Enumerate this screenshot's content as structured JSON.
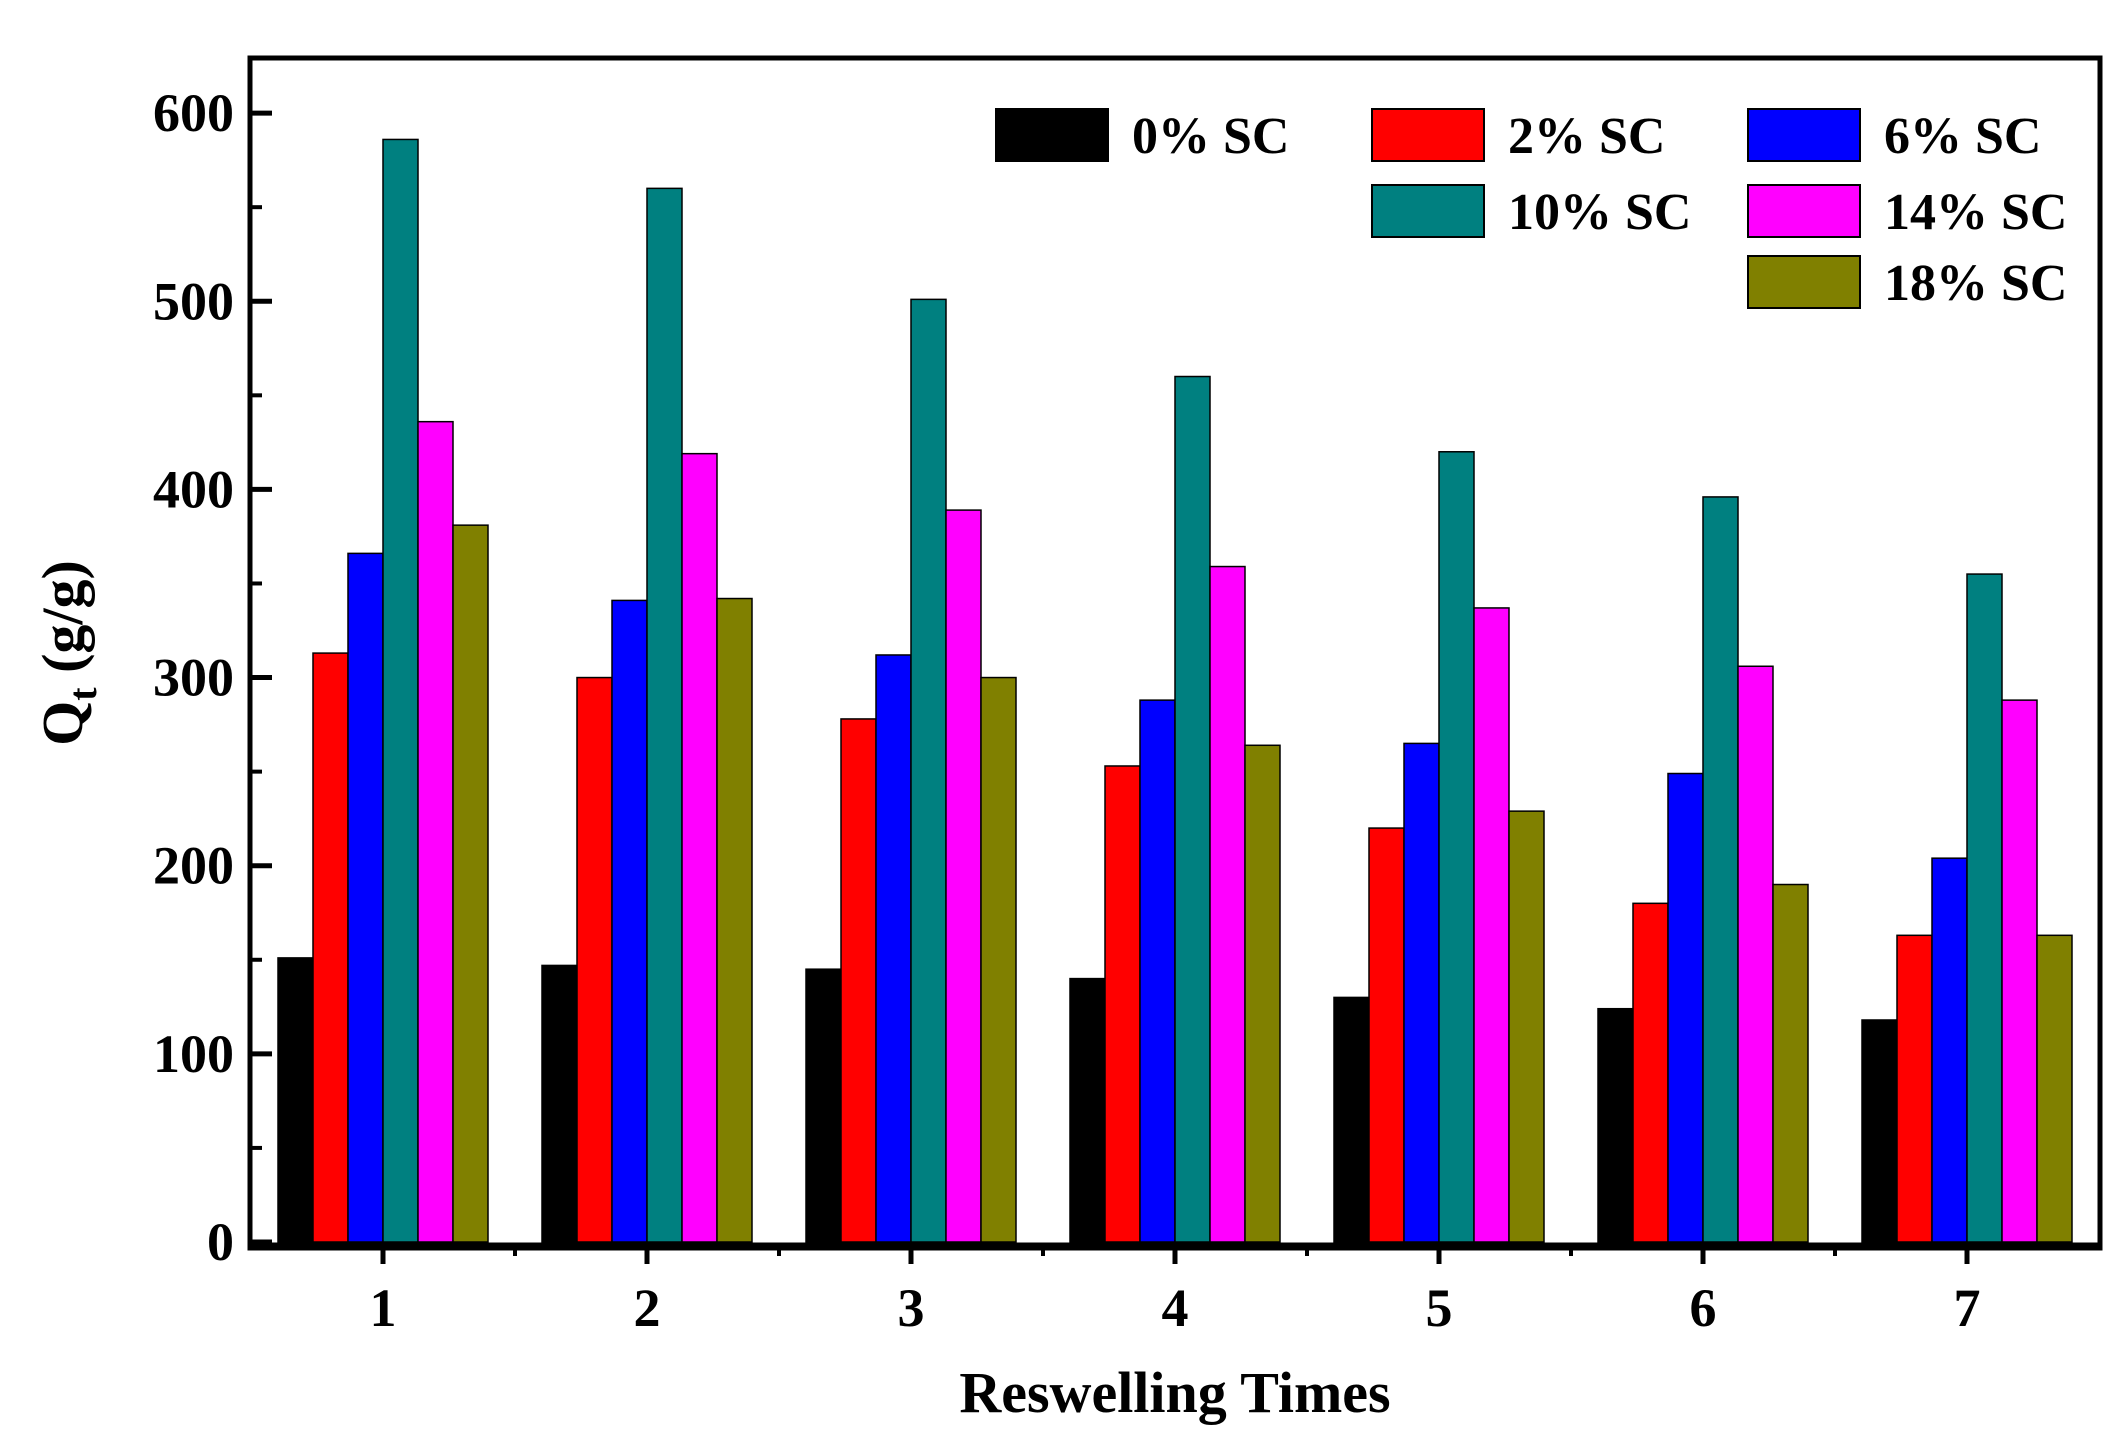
{
  "chart_data": {
    "type": "bar",
    "title": "",
    "xlabel": "Reswelling Times",
    "ylabel_main": "Q",
    "ylabel_sub": "t",
    "ylabel_unit": " (g/g)",
    "ylim": [
      0,
      630
    ],
    "yticks": [
      0,
      100,
      200,
      300,
      400,
      500,
      600
    ],
    "categories": [
      "1",
      "2",
      "3",
      "4",
      "5",
      "6",
      "7"
    ],
    "legend_position": "top-right",
    "series": [
      {
        "name": "0% SC",
        "color": "#000000",
        "values": [
          151,
          147,
          145,
          140,
          130,
          124,
          118
        ]
      },
      {
        "name": "2% SC",
        "color": "#ff0000",
        "values": [
          313,
          300,
          278,
          253,
          220,
          180,
          163
        ]
      },
      {
        "name": "6% SC",
        "color": "#0000ff",
        "values": [
          366,
          341,
          312,
          288,
          265,
          249,
          204
        ]
      },
      {
        "name": "10% SC",
        "color": "#008080",
        "values": [
          586,
          560,
          501,
          460,
          420,
          396,
          355
        ]
      },
      {
        "name": "14% SC",
        "color": "#ff00ff",
        "values": [
          436,
          419,
          389,
          359,
          337,
          306,
          288
        ]
      },
      {
        "name": "18% SC",
        "color": "#808000",
        "values": [
          381,
          342,
          300,
          264,
          229,
          190,
          163
        ]
      }
    ]
  }
}
